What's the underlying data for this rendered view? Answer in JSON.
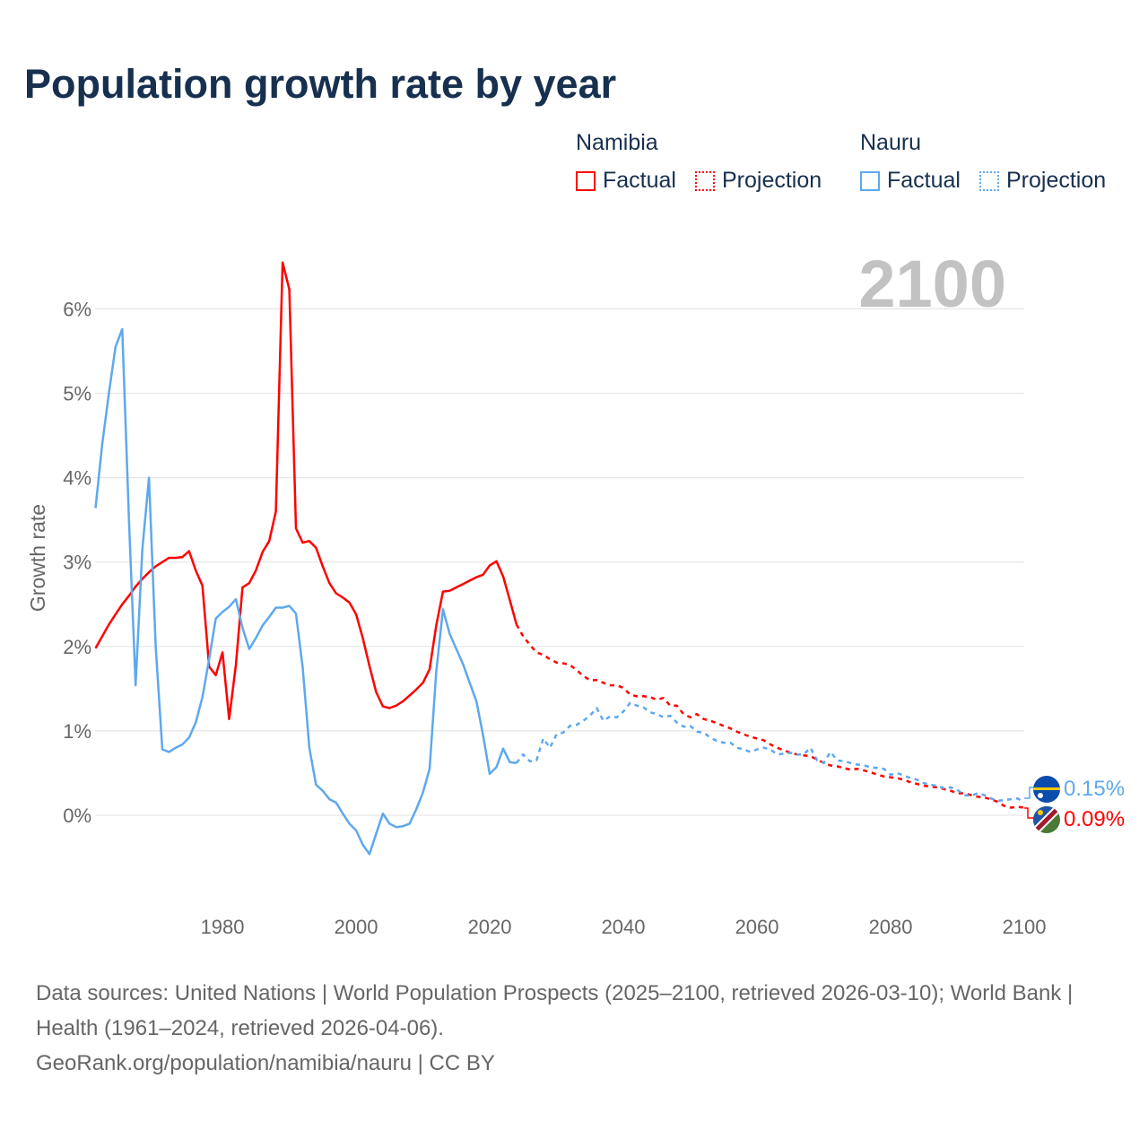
{
  "title": "Population growth rate by year",
  "legend": {
    "groups": [
      {
        "country": "Namibia",
        "factual": "Factual",
        "projection": "Projection",
        "color": "#ff0000"
      },
      {
        "country": "Nauru",
        "factual": "Factual",
        "projection": "Projection",
        "color": "#5ea8ee"
      }
    ]
  },
  "current_year": "2100",
  "end_labels": {
    "nauru": "0.15%",
    "namibia": "0.09%"
  },
  "footer": {
    "sources": "Data sources: United Nations | World Population Prospects (2025–2100, retrieved 2026-03-10); World Bank | Health (1961–2024, retrieved 2026-04-06).",
    "attribution": "GeoRank.org/population/namibia/nauru | CC BY"
  },
  "chart_data": {
    "type": "line",
    "title": "Population growth rate by year",
    "xlabel": "",
    "ylabel": "Growth rate",
    "xlim": [
      1961,
      2100
    ],
    "ylim": [
      -0.9,
      6.9
    ],
    "x_ticks": [
      "1980",
      "2000",
      "2020",
      "2040",
      "2060",
      "2080",
      "2100"
    ],
    "y_ticks": [
      "0%",
      "1%",
      "2%",
      "3%",
      "4%",
      "5%",
      "6%"
    ],
    "grid": true,
    "legend_position": "top-right",
    "series": [
      {
        "name": "Namibia Factual",
        "start_year": 1961,
        "color": "#ff0000",
        "dashed": false,
        "values": [
          1.98,
          2.12,
          2.26,
          2.38,
          2.5,
          2.6,
          2.71,
          2.8,
          2.88,
          2.95,
          3.0,
          3.05,
          3.05,
          3.06,
          3.13,
          2.9,
          2.72,
          1.76,
          1.66,
          1.93,
          1.14,
          1.78,
          2.7,
          2.75,
          2.9,
          3.12,
          3.25,
          3.6,
          6.55,
          6.23,
          3.4,
          3.23,
          3.25,
          3.17,
          2.95,
          2.75,
          2.63,
          2.58,
          2.52,
          2.38,
          2.1,
          1.77,
          1.46,
          1.29,
          1.27,
          1.3,
          1.35,
          1.42,
          1.49,
          1.57,
          1.73,
          2.25,
          2.65,
          2.66,
          2.7,
          2.74,
          2.78,
          2.82,
          2.85,
          2.96,
          3.01,
          2.83,
          2.55,
          2.26
        ]
      },
      {
        "name": "Namibia Projection",
        "start_year": 2024,
        "color": "#ff0000",
        "dashed": true,
        "values": [
          2.26,
          2.12,
          2.02,
          1.93,
          1.9,
          1.85,
          1.81,
          1.8,
          1.78,
          1.72,
          1.65,
          1.6,
          1.6,
          1.57,
          1.54,
          1.54,
          1.51,
          1.43,
          1.41,
          1.41,
          1.4,
          1.37,
          1.39,
          1.3,
          1.3,
          1.2,
          1.16,
          1.2,
          1.14,
          1.12,
          1.09,
          1.06,
          1.03,
          0.99,
          0.96,
          0.93,
          0.91,
          0.89,
          0.84,
          0.8,
          0.77,
          0.74,
          0.72,
          0.71,
          0.7,
          0.66,
          0.62,
          0.59,
          0.58,
          0.56,
          0.54,
          0.55,
          0.53,
          0.51,
          0.48,
          0.46,
          0.45,
          0.44,
          0.42,
          0.39,
          0.37,
          0.35,
          0.34,
          0.33,
          0.31,
          0.29,
          0.26,
          0.26,
          0.24,
          0.22,
          0.21,
          0.19,
          0.16,
          0.11,
          0.09,
          0.1,
          0.09
        ]
      },
      {
        "name": "Nauru Factual",
        "start_year": 1961,
        "color": "#5ea8ee",
        "dashed": false,
        "values": [
          3.64,
          4.4,
          5.0,
          5.55,
          5.76,
          3.5,
          1.54,
          3.15,
          4.0,
          2.0,
          0.78,
          0.75,
          0.8,
          0.84,
          0.92,
          1.1,
          1.4,
          1.85,
          2.33,
          2.41,
          2.47,
          2.56,
          2.22,
          1.97,
          2.1,
          2.25,
          2.35,
          2.46,
          2.46,
          2.48,
          2.39,
          1.75,
          0.8,
          0.36,
          0.29,
          0.19,
          0.15,
          0.02,
          -0.1,
          -0.18,
          -0.35,
          -0.46,
          -0.22,
          0.02,
          -0.1,
          -0.14,
          -0.13,
          -0.1,
          0.07,
          0.27,
          0.55,
          1.7,
          2.44,
          2.15,
          1.97,
          1.79,
          1.57,
          1.35,
          0.95,
          0.49,
          0.57,
          0.79,
          0.63,
          0.62
        ]
      },
      {
        "name": "Nauru Projection",
        "start_year": 2024,
        "color": "#5ea8ee",
        "dashed": true,
        "values": [
          0.62,
          0.72,
          0.64,
          0.65,
          0.91,
          0.8,
          0.96,
          0.98,
          1.06,
          1.07,
          1.12,
          1.18,
          1.27,
          1.12,
          1.17,
          1.16,
          1.23,
          1.33,
          1.3,
          1.28,
          1.22,
          1.2,
          1.16,
          1.18,
          1.1,
          1.05,
          1.06,
          0.99,
          0.98,
          0.92,
          0.88,
          0.86,
          0.86,
          0.8,
          0.78,
          0.75,
          0.78,
          0.8,
          0.78,
          0.72,
          0.73,
          0.74,
          0.72,
          0.72,
          0.8,
          0.65,
          0.62,
          0.75,
          0.65,
          0.64,
          0.62,
          0.6,
          0.59,
          0.57,
          0.56,
          0.55,
          0.48,
          0.5,
          0.47,
          0.44,
          0.42,
          0.38,
          0.36,
          0.35,
          0.32,
          0.33,
          0.3,
          0.24,
          0.23,
          0.26,
          0.24,
          0.2,
          0.17,
          0.18,
          0.19,
          0.2,
          0.15
        ]
      }
    ]
  }
}
